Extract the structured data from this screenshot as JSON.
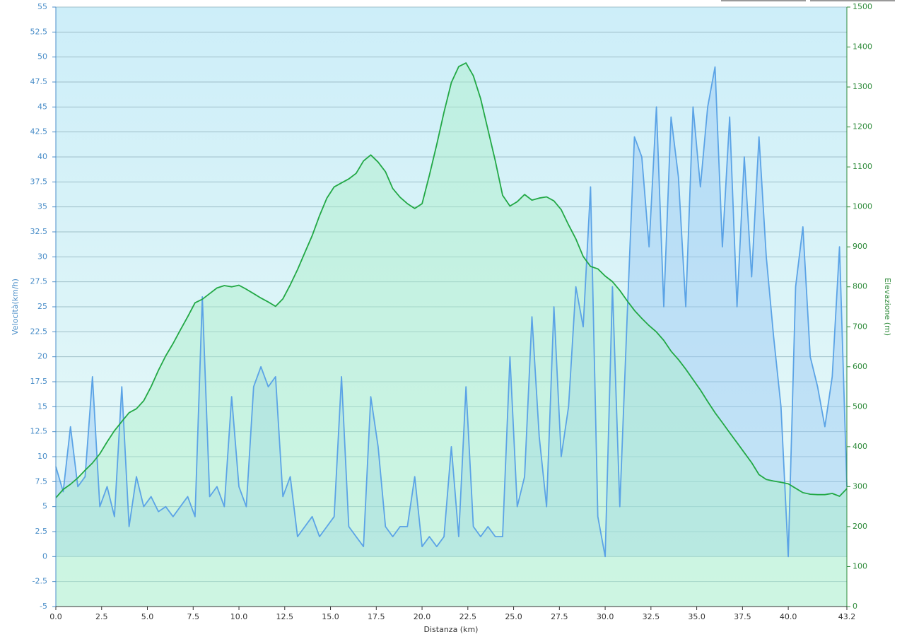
{
  "chart_data": {
    "type": "line",
    "x_label": "Distanza  (km)",
    "y_label": "Velocità(km/h)",
    "y2_label": "Elevazione (m)",
    "x": [
      0,
      0.4,
      0.8,
      1.2,
      1.6,
      2.0,
      2.4,
      2.8,
      3.2,
      3.6,
      4.0,
      4.4,
      4.8,
      5.2,
      5.6,
      6.0,
      6.4,
      6.8,
      7.2,
      7.6,
      8.0,
      8.4,
      8.8,
      9.2,
      9.6,
      10.0,
      10.4,
      10.8,
      11.2,
      11.6,
      12.0,
      12.4,
      12.8,
      13.2,
      13.6,
      14.0,
      14.4,
      14.8,
      15.2,
      15.6,
      16.0,
      16.4,
      16.8,
      17.2,
      17.6,
      18.0,
      18.4,
      18.8,
      19.2,
      19.6,
      20.0,
      20.4,
      20.8,
      21.2,
      21.6,
      22.0,
      22.4,
      22.8,
      23.2,
      23.6,
      24.0,
      24.4,
      24.8,
      25.2,
      25.6,
      26.0,
      26.4,
      26.8,
      27.2,
      27.6,
      28.0,
      28.4,
      28.8,
      29.2,
      29.6,
      30.0,
      30.4,
      30.8,
      31.2,
      31.6,
      32.0,
      32.4,
      32.8,
      33.2,
      33.6,
      34.0,
      34.4,
      34.8,
      35.2,
      35.6,
      36.0,
      36.4,
      36.8,
      37.2,
      37.6,
      38.0,
      38.4,
      38.8,
      39.2,
      39.6,
      40.0,
      40.4,
      40.8,
      41.2,
      41.6,
      42.0,
      42.4,
      42.8,
      43.2
    ],
    "series": [
      {
        "name": "Velocità",
        "color": "#5ba3e6",
        "fill": "rgba(150,200,245,0.45)",
        "values": [
          9,
          6.5,
          13,
          7,
          8,
          18,
          5,
          7,
          4,
          17,
          3,
          8,
          5,
          6,
          4.5,
          5,
          4,
          5,
          6,
          4,
          26,
          6,
          7,
          5,
          16,
          7,
          5,
          17,
          19,
          17,
          18,
          6,
          8,
          2,
          3,
          4,
          2,
          3,
          4,
          18,
          3,
          2,
          1,
          16,
          11,
          3,
          2,
          3,
          3,
          8,
          1,
          2,
          1,
          2,
          11,
          2,
          17,
          3,
          2,
          3,
          2,
          2,
          20,
          5,
          8,
          24,
          12,
          5,
          25,
          10,
          15,
          27,
          23,
          37,
          4,
          0,
          27,
          5,
          24,
          42,
          40,
          31,
          45,
          25,
          44,
          38,
          25,
          45,
          37,
          45,
          49,
          31,
          44,
          25,
          40,
          28,
          42,
          30,
          22,
          15,
          0,
          27,
          33,
          20,
          17,
          13,
          18,
          31,
          7
        ]
      },
      {
        "name": "Elevazione",
        "color": "#22a845",
        "fill": "rgba(170,240,200,0.45)",
        "axis": "y2",
        "values": [
          272,
          293,
          306,
          322,
          341,
          359,
          382,
          412,
          440,
          463,
          485,
          495,
          515,
          550,
          591,
          627,
          658,
          692,
          725,
          760,
          769,
          783,
          797,
          803,
          800,
          804,
          794,
          783,
          772,
          762,
          751,
          770,
          805,
          843,
          886,
          928,
          978,
          1022,
          1050,
          1060,
          1070,
          1084,
          1115,
          1130,
          1112,
          1088,
          1046,
          1024,
          1008,
          996,
          1008,
          1079,
          1156,
          1237,
          1311,
          1351,
          1360,
          1328,
          1271,
          1193,
          1115,
          1029,
          1002,
          1013,
          1031,
          1017,
          1022,
          1025,
          1015,
          993,
          955,
          920,
          876,
          851,
          845,
          827,
          813,
          791,
          765,
          741,
          721,
          703,
          687,
          666,
          639,
          618,
          594,
          568,
          542,
          513,
          485,
          460,
          435,
          410,
          385,
          360,
          330,
          318,
          314,
          311,
          307,
          296,
          285,
          281,
          280,
          280,
          283,
          276,
          295
        ]
      }
    ],
    "xlim": [
      0,
      43.2
    ],
    "xticks": [
      {
        "value": 0,
        "label": "0.0"
      },
      2.5,
      {
        "value": 5,
        "label": "5.0"
      },
      7.5,
      {
        "value": 10,
        "label": "10.0"
      },
      12.5,
      {
        "value": 15,
        "label": "15.0"
      },
      17.5,
      {
        "value": 20,
        "label": "20.0"
      },
      22.5,
      {
        "value": 25,
        "label": "25.0"
      },
      27.5,
      {
        "value": 30,
        "label": "30.0"
      },
      32.5,
      {
        "value": 35,
        "label": "35.0"
      },
      37.5,
      {
        "value": 40,
        "label": "40.0"
      },
      43.2
    ],
    "ylim": [
      -5,
      55
    ],
    "yticks": [
      -5,
      -2.5,
      0,
      2.5,
      5,
      7.5,
      10,
      12.5,
      15,
      17.5,
      20,
      22.5,
      25,
      27.5,
      30,
      32.5,
      35,
      37.5,
      40,
      42.5,
      45,
      47.5,
      50,
      52.5,
      55
    ],
    "y2lim": [
      0,
      1500
    ],
    "y2ticks": [
      0,
      100,
      200,
      300,
      400,
      500,
      600,
      700,
      800,
      900,
      1000,
      1100,
      1200,
      1300,
      1400,
      1500
    ],
    "grid": true
  }
}
